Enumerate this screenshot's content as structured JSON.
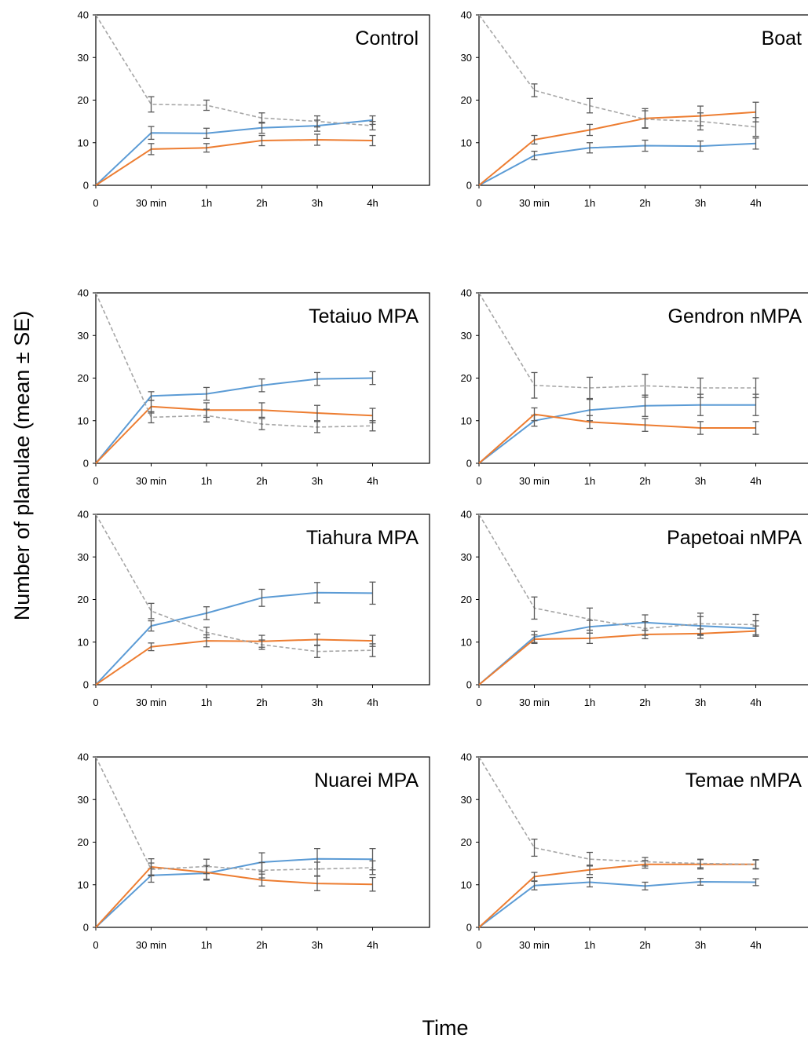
{
  "figure": {
    "ylabel": "Number of planulae (mean ± SE)",
    "xlabel": "Time"
  },
  "colors": {
    "blue": "#5b9bd5",
    "orange": "#ed7d31",
    "gray": "#a6a6a6",
    "errorbar": "#595959"
  },
  "chart_data": [
    {
      "type": "line",
      "title": "Control",
      "categories": [
        "0",
        "30 min",
        "1h",
        "2h",
        "3h",
        "4h"
      ],
      "ylim": [
        0,
        40
      ],
      "yticks": [
        0,
        10,
        20,
        30,
        40
      ],
      "series": [
        {
          "color": "blue",
          "values": [
            0,
            12.3,
            12.2,
            13.5,
            14.0,
            15.3
          ],
          "errors": [
            0,
            1.5,
            1.2,
            1.3,
            1.3,
            1.0
          ]
        },
        {
          "color": "orange",
          "values": [
            0,
            8.5,
            8.8,
            10.5,
            10.7,
            10.5
          ],
          "errors": [
            0,
            1.3,
            1.0,
            1.2,
            1.3,
            1.2
          ]
        },
        {
          "color": "gray",
          "dashed": true,
          "values": [
            40,
            19.0,
            18.8,
            15.8,
            15.0,
            14.0
          ],
          "errors": [
            0,
            1.8,
            1.2,
            1.2,
            1.3,
            1.0
          ]
        }
      ]
    },
    {
      "type": "line",
      "title": "Boat",
      "categories": [
        "0",
        "30 min",
        "1h",
        "2h",
        "3h",
        "4h"
      ],
      "ylim": [
        0,
        40
      ],
      "yticks": [
        0,
        10,
        20,
        30,
        40
      ],
      "series": [
        {
          "color": "blue",
          "values": [
            0,
            7.0,
            8.8,
            9.3,
            9.2,
            9.8
          ],
          "errors": [
            0,
            1.0,
            1.2,
            1.3,
            1.2,
            1.3
          ]
        },
        {
          "color": "orange",
          "values": [
            0,
            10.7,
            13.0,
            15.7,
            16.3,
            17.2
          ],
          "errors": [
            0,
            1.0,
            1.3,
            2.3,
            2.3,
            2.3
          ]
        },
        {
          "color": "gray",
          "dashed": true,
          "values": [
            40,
            22.3,
            18.7,
            15.5,
            15.0,
            13.7
          ],
          "errors": [
            0,
            1.5,
            1.7,
            2.0,
            2.0,
            2.2
          ]
        }
      ]
    },
    {
      "type": "line",
      "title": "Tetaiuo MPA",
      "categories": [
        "0",
        "30 min",
        "1h",
        "2h",
        "3h",
        "4h"
      ],
      "ylim": [
        0,
        40
      ],
      "yticks": [
        0,
        10,
        20,
        30,
        40
      ],
      "series": [
        {
          "color": "blue",
          "values": [
            0,
            15.8,
            16.3,
            18.3,
            19.8,
            20.0
          ],
          "errors": [
            0,
            1.0,
            1.5,
            1.5,
            1.5,
            1.5
          ]
        },
        {
          "color": "orange",
          "values": [
            0,
            13.3,
            12.5,
            12.5,
            11.8,
            11.2
          ],
          "errors": [
            0,
            1.5,
            1.7,
            1.7,
            1.8,
            1.7
          ]
        },
        {
          "color": "gray",
          "dashed": true,
          "values": [
            40,
            10.8,
            11.2,
            9.2,
            8.5,
            8.8
          ],
          "errors": [
            0,
            1.3,
            1.5,
            1.3,
            1.3,
            1.2
          ]
        }
      ]
    },
    {
      "type": "line",
      "title": "Gendron nMPA",
      "categories": [
        "0",
        "30 min",
        "1h",
        "2h",
        "3h",
        "4h"
      ],
      "ylim": [
        0,
        40
      ],
      "yticks": [
        0,
        10,
        20,
        30,
        40
      ],
      "series": [
        {
          "color": "blue",
          "values": [
            0,
            10.0,
            12.5,
            13.5,
            13.7,
            13.7
          ],
          "errors": [
            0,
            1.3,
            2.5,
            2.5,
            2.5,
            2.5
          ]
        },
        {
          "color": "orange",
          "values": [
            0,
            11.5,
            9.7,
            9.0,
            8.3,
            8.3
          ],
          "errors": [
            0,
            1.5,
            1.5,
            1.5,
            1.5,
            1.5
          ]
        },
        {
          "color": "gray",
          "dashed": true,
          "values": [
            40,
            18.3,
            17.7,
            18.2,
            17.7,
            17.7
          ],
          "errors": [
            0,
            3.0,
            2.5,
            2.7,
            2.3,
            2.3
          ]
        }
      ]
    },
    {
      "type": "line",
      "title": "Tiahura MPA",
      "categories": [
        "0",
        "30 min",
        "1h",
        "2h",
        "3h",
        "4h"
      ],
      "ylim": [
        0,
        40
      ],
      "yticks": [
        0,
        10,
        20,
        30,
        40
      ],
      "series": [
        {
          "color": "blue",
          "values": [
            0,
            13.8,
            16.8,
            20.4,
            21.6,
            21.5
          ],
          "errors": [
            0,
            1.2,
            1.5,
            2.0,
            2.4,
            2.6
          ]
        },
        {
          "color": "orange",
          "values": [
            0,
            8.9,
            10.3,
            10.2,
            10.6,
            10.3
          ],
          "errors": [
            0,
            0.9,
            1.4,
            1.4,
            1.3,
            1.3
          ]
        },
        {
          "color": "gray",
          "dashed": true,
          "values": [
            40,
            17.3,
            12.3,
            9.4,
            7.8,
            8.1
          ],
          "errors": [
            0,
            1.8,
            1.2,
            1.1,
            1.4,
            1.5
          ]
        }
      ]
    },
    {
      "type": "line",
      "title": "Papetoai nMPA",
      "categories": [
        "0",
        "30 min",
        "1h",
        "2h",
        "3h",
        "4h"
      ],
      "ylim": [
        0,
        40
      ],
      "yticks": [
        0,
        10,
        20,
        30,
        40
      ],
      "series": [
        {
          "color": "blue",
          "values": [
            0,
            11.2,
            13.6,
            14.6,
            13.8,
            13.2
          ],
          "errors": [
            0,
            1.3,
            1.5,
            1.8,
            2.2,
            1.8
          ]
        },
        {
          "color": "orange",
          "values": [
            0,
            10.7,
            10.9,
            11.8,
            12.0,
            12.6
          ],
          "errors": [
            0,
            1.0,
            1.2,
            1.0,
            1.1,
            1.2
          ]
        },
        {
          "color": "gray",
          "dashed": true,
          "values": [
            40,
            18.0,
            15.4,
            13.2,
            14.3,
            14.1
          ],
          "errors": [
            0,
            2.6,
            2.6,
            1.6,
            2.5,
            2.4
          ]
        }
      ]
    },
    {
      "type": "line",
      "title": "Nuarei MPA",
      "categories": [
        "0",
        "30 min",
        "1h",
        "2h",
        "3h",
        "4h"
      ],
      "ylim": [
        0,
        40
      ],
      "yticks": [
        0,
        10,
        20,
        30,
        40
      ],
      "series": [
        {
          "color": "blue",
          "values": [
            0,
            12.2,
            12.7,
            15.3,
            16.1,
            16.0
          ],
          "errors": [
            0,
            1.6,
            1.6,
            2.2,
            2.4,
            2.5
          ]
        },
        {
          "color": "orange",
          "values": [
            0,
            14.2,
            12.9,
            11.1,
            10.3,
            10.1
          ],
          "errors": [
            0,
            1.9,
            1.6,
            1.4,
            1.7,
            1.6
          ]
        },
        {
          "color": "gray",
          "dashed": true,
          "values": [
            40,
            13.6,
            14.3,
            13.4,
            13.7,
            14.0
          ],
          "errors": [
            0,
            1.5,
            1.7,
            1.8,
            1.6,
            1.6
          ]
        }
      ]
    },
    {
      "type": "line",
      "title": "Temae nMPA",
      "categories": [
        "0",
        "30 min",
        "1h",
        "2h",
        "3h",
        "4h"
      ],
      "ylim": [
        0,
        40
      ],
      "yticks": [
        0,
        10,
        20,
        30,
        40
      ],
      "series": [
        {
          "color": "blue",
          "values": [
            0,
            9.8,
            10.6,
            9.7,
            10.7,
            10.6
          ],
          "errors": [
            0,
            1.0,
            1.1,
            0.9,
            0.8,
            0.8
          ]
        },
        {
          "color": "orange",
          "values": [
            0,
            11.9,
            13.5,
            14.8,
            14.8,
            14.8
          ],
          "errors": [
            0,
            1.0,
            1.1,
            0.9,
            1.1,
            1.1
          ]
        },
        {
          "color": "gray",
          "dashed": true,
          "values": [
            40,
            18.7,
            16.0,
            15.4,
            15.0,
            14.8
          ],
          "errors": [
            0,
            2.0,
            1.6,
            1.0,
            1.0,
            1.0
          ]
        }
      ]
    }
  ]
}
